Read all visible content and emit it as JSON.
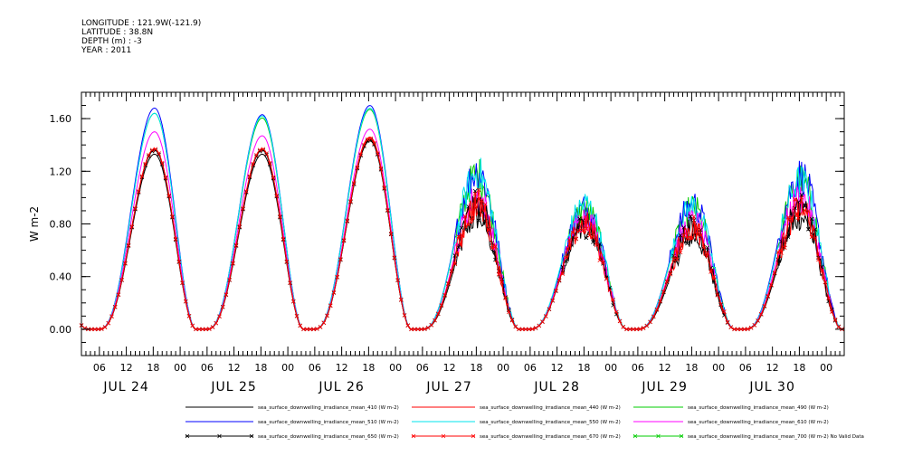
{
  "header": {
    "longitude": "LONGITUDE : 121.9W(-121.9)",
    "latitude": "LATITUDE : 38.8N",
    "depth": "DEPTH (m) : -3",
    "year": "YEAR : 2011"
  },
  "chart_data": {
    "type": "line",
    "xlabel": "",
    "ylabel": "W m-2",
    "ylim": [
      -0.2,
      1.8
    ],
    "yticks": [
      "0.00",
      "0.40",
      "0.80",
      "1.20",
      "1.60"
    ],
    "ytick_values": [
      0.0,
      0.4,
      0.8,
      1.2,
      1.6
    ],
    "xlim_hours": [
      2,
      172
    ],
    "hour_ticks": [
      "06",
      "12",
      "18",
      "00"
    ],
    "days": [
      "JUL 24",
      "JUL 25",
      "JUL 26",
      "JUL 27",
      "JUL 28",
      "JUL 29",
      "JUL 30"
    ],
    "day_peaks": [
      {
        "day": "JUL 24",
        "410": 1.33,
        "510": 1.68,
        "550": 1.64,
        "610": 1.5,
        "670": 1.37
      },
      {
        "day": "JUL 25",
        "410": 1.33,
        "510": 1.63,
        "550": 1.62,
        "610": 1.47,
        "670": 1.37
      },
      {
        "day": "JUL 26",
        "410": 1.43,
        "510": 1.7,
        "550": 1.68,
        "610": 1.52,
        "670": 1.45
      },
      {
        "day": "JUL 27",
        "410": 0.85,
        "510": 1.2,
        "550": 1.18,
        "610": 1.0,
        "670": 0.95
      },
      {
        "day": "JUL 28",
        "410": 0.8,
        "510": 0.92,
        "550": 0.95,
        "610": 0.85,
        "670": 0.8
      },
      {
        "day": "JUL 29",
        "410": 0.7,
        "510": 0.95,
        "550": 0.93,
        "610": 0.82,
        "670": 0.78
      },
      {
        "day": "JUL 30",
        "410": 0.85,
        "510": 1.17,
        "550": 1.12,
        "610": 1.0,
        "670": 0.92
      }
    ],
    "series": [
      {
        "name": "sea_surface_downwelling_irradiance_mean_410 (W m-2)",
        "color": "#000000",
        "marker": "none",
        "key": "410"
      },
      {
        "name": "sea_surface_downwelling_irradiance_mean_440 (W m-2)",
        "color": "#ff0000",
        "marker": "none",
        "key": "440"
      },
      {
        "name": "sea_surface_downwelling_irradiance_mean_490 (W m-2)",
        "color": "#00cc00",
        "marker": "none",
        "key": "490"
      },
      {
        "name": "sea_surface_downwelling_irradiance_mean_510 (W m-2)",
        "color": "#0000ff",
        "marker": "none",
        "key": "510"
      },
      {
        "name": "sea_surface_downwelling_irradiance_mean_550 (W m-2)",
        "color": "#00e5ee",
        "marker": "none",
        "key": "550"
      },
      {
        "name": "sea_surface_downwelling_irradiance_mean_610 (W m-2)",
        "color": "#ff00ff",
        "marker": "none",
        "key": "610"
      },
      {
        "name": "sea_surface_downwelling_irradiance_mean_650 (W m-2)",
        "color": "#000000",
        "marker": "x",
        "key": "650"
      },
      {
        "name": "sea_surface_downwelling_irradiance_mean_670 (W m-2)",
        "color": "#ff0000",
        "marker": "x",
        "key": "670"
      },
      {
        "name": "sea_surface_downwelling_irradiance_mean_700 (W m-2) No Valid Data",
        "color": "#00cc00",
        "marker": "x",
        "key": "700"
      }
    ],
    "legend_placement": "bottom",
    "grid": false
  }
}
